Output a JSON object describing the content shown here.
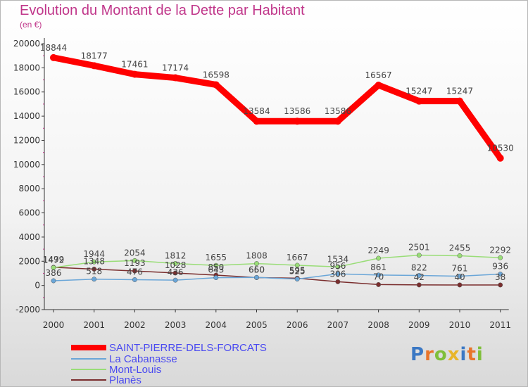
{
  "title": "Evolution du Montant de la Dette par Habitant",
  "subtitle": "(en €)",
  "brand": "Proxiti",
  "chart_data": {
    "type": "line",
    "categories": [
      "2000",
      "2001",
      "2002",
      "2003",
      "2004",
      "2005",
      "2006",
      "2007",
      "2008",
      "2009",
      "2010",
      "2011"
    ],
    "ylim": [
      -2000,
      20000
    ],
    "yticks": [
      -2000,
      0,
      2000,
      4000,
      6000,
      8000,
      10000,
      12000,
      14000,
      16000,
      18000,
      20000
    ],
    "grid": false,
    "legend_position": "bottom-left",
    "series": [
      {
        "name": "SAINT-PIERRE-DELS-FORCATS",
        "color": "#ff0000",
        "values": [
          18844,
          18177,
          17461,
          17174,
          16598,
          13584,
          13586,
          13586,
          16567,
          15247,
          15247,
          10530
        ],
        "labels": [
          "18844",
          "18177",
          "17461",
          "17174",
          "16598",
          "13584",
          "13586",
          "13586",
          "16567",
          "15247",
          "15247",
          "10530"
        ]
      },
      {
        "name": "La Cabanasse",
        "color": "#6aa6d8",
        "values": [
          386,
          518,
          476,
          436,
          643,
          660,
          525,
          956,
          861,
          822,
          761,
          936
        ],
        "labels": [
          "386",
          "518",
          "476",
          "436",
          "643",
          "660",
          "525",
          "956",
          "861",
          "822",
          "761",
          "936"
        ]
      },
      {
        "name": "Mont-Louis",
        "color": "#99dd77",
        "values": [
          1472,
          1944,
          2054,
          1812,
          1655,
          1808,
          1667,
          1534,
          2249,
          2501,
          2455,
          2292
        ],
        "labels": [
          "1472",
          "1944",
          "2054",
          "1812",
          "1655",
          "1808",
          "1667",
          "1534",
          "2249",
          "2501",
          "2455",
          "2292"
        ]
      },
      {
        "name": "Planès",
        "color": "#7a2e2e",
        "values": [
          1499,
          1348,
          1193,
          1028,
          850,
          650,
          595,
          306,
          70,
          42,
          40,
          38
        ],
        "labels": [
          "1499",
          "1348",
          "1193",
          "1028",
          "850",
          "650",
          "595",
          "306",
          "70",
          "42",
          "40",
          "38"
        ]
      }
    ]
  }
}
